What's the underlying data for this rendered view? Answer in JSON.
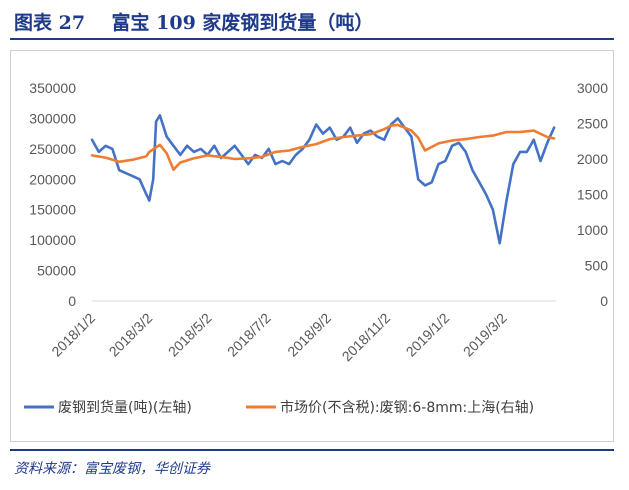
{
  "header": {
    "figure_label": "图表 27",
    "title": "富宝 109 家废钢到货量（吨）"
  },
  "source": "资料来源：富宝废钢，华创证券",
  "chart_data": {
    "type": "line",
    "colors": {
      "left": "#4472C4",
      "right": "#ED7D31"
    },
    "left_axis": {
      "ylim": [
        0,
        350000
      ],
      "ticks": [
        "0",
        "50000",
        "100000",
        "150000",
        "200000",
        "250000",
        "300000",
        "350000"
      ]
    },
    "right_axis": {
      "ylim": [
        0,
        3000
      ],
      "ticks": [
        "0",
        "500",
        "1000",
        "1500",
        "2000",
        "2500",
        "3000"
      ]
    },
    "x_ticks": [
      "2018/1/2",
      "2018/3/2",
      "2018/5/2",
      "2018/7/2",
      "2018/9/2",
      "2018/11/2",
      "2019/1/2",
      "2019/3/2"
    ],
    "legend": [
      "废钢到货量(吨)(左轴)",
      "市场价(不含税):废钢:6-8mm:上海(右轴)"
    ],
    "series": [
      {
        "name": "废钢到货量(吨)(左轴)",
        "axis": "left",
        "x": [
          "2018-01-02",
          "2018-01-09",
          "2018-01-16",
          "2018-01-23",
          "2018-01-30",
          "2018-02-06",
          "2018-02-13",
          "2018-02-20",
          "2018-02-27",
          "2018-03-02",
          "2018-03-06",
          "2018-03-09",
          "2018-03-13",
          "2018-03-20",
          "2018-03-27",
          "2018-04-03",
          "2018-04-10",
          "2018-04-17",
          "2018-04-24",
          "2018-05-01",
          "2018-05-08",
          "2018-05-15",
          "2018-05-22",
          "2018-05-29",
          "2018-06-05",
          "2018-06-12",
          "2018-06-19",
          "2018-06-26",
          "2018-07-03",
          "2018-07-10",
          "2018-07-17",
          "2018-07-24",
          "2018-07-31",
          "2018-08-07",
          "2018-08-14",
          "2018-08-21",
          "2018-08-28",
          "2018-09-04",
          "2018-09-11",
          "2018-09-18",
          "2018-09-25",
          "2018-10-02",
          "2018-10-09",
          "2018-10-16",
          "2018-10-23",
          "2018-10-30",
          "2018-11-06",
          "2018-11-13",
          "2018-11-20",
          "2018-11-27",
          "2018-12-04",
          "2018-12-11",
          "2018-12-18",
          "2018-12-25",
          "2019-01-01",
          "2019-01-08",
          "2019-01-15",
          "2019-01-22",
          "2019-01-29",
          "2019-02-05",
          "2019-02-12",
          "2019-02-19",
          "2019-02-26",
          "2019-03-05",
          "2019-03-12",
          "2019-03-19",
          "2019-03-26",
          "2019-04-02",
          "2019-04-09",
          "2019-04-16",
          "2019-04-23"
        ],
        "values": [
          265000,
          245000,
          255000,
          250000,
          215000,
          210000,
          205000,
          200000,
          175000,
          165000,
          200000,
          295000,
          305000,
          270000,
          255000,
          240000,
          255000,
          245000,
          250000,
          240000,
          255000,
          235000,
          245000,
          255000,
          240000,
          225000,
          240000,
          235000,
          250000,
          225000,
          230000,
          225000,
          240000,
          250000,
          265000,
          290000,
          275000,
          285000,
          265000,
          270000,
          285000,
          260000,
          275000,
          280000,
          270000,
          265000,
          290000,
          300000,
          285000,
          270000,
          200000,
          190000,
          195000,
          225000,
          230000,
          255000,
          260000,
          245000,
          215000,
          195000,
          175000,
          150000,
          95000,
          165000,
          225000,
          245000,
          245000,
          265000,
          230000,
          260000,
          285000
        ],
        "color": "#4472C4"
      },
      {
        "name": "市场价(不含税):废钢:6-8mm:上海(右轴)",
        "axis": "right",
        "x": [
          "2018-01-02",
          "2018-01-16",
          "2018-01-30",
          "2018-02-13",
          "2018-02-27",
          "2018-03-02",
          "2018-03-13",
          "2018-03-20",
          "2018-03-27",
          "2018-04-03",
          "2018-04-17",
          "2018-05-01",
          "2018-05-15",
          "2018-05-29",
          "2018-06-12",
          "2018-06-26",
          "2018-07-10",
          "2018-07-24",
          "2018-08-07",
          "2018-08-21",
          "2018-09-04",
          "2018-09-18",
          "2018-10-02",
          "2018-10-16",
          "2018-10-30",
          "2018-11-06",
          "2018-11-13",
          "2018-11-27",
          "2018-12-04",
          "2018-12-11",
          "2018-12-25",
          "2019-01-08",
          "2019-01-22",
          "2019-02-05",
          "2019-02-19",
          "2019-03-05",
          "2019-03-19",
          "2019-04-02",
          "2019-04-16",
          "2019-04-23"
        ],
        "values": [
          2050,
          2020,
          1960,
          1990,
          2040,
          2100,
          2200,
          2080,
          1850,
          1950,
          2010,
          2050,
          2030,
          2000,
          2010,
          2030,
          2100,
          2120,
          2170,
          2210,
          2280,
          2310,
          2330,
          2350,
          2420,
          2470,
          2480,
          2400,
          2300,
          2120,
          2220,
          2260,
          2280,
          2310,
          2330,
          2380,
          2380,
          2400,
          2310,
          2290
        ],
        "color": "#ED7D31"
      }
    ]
  }
}
